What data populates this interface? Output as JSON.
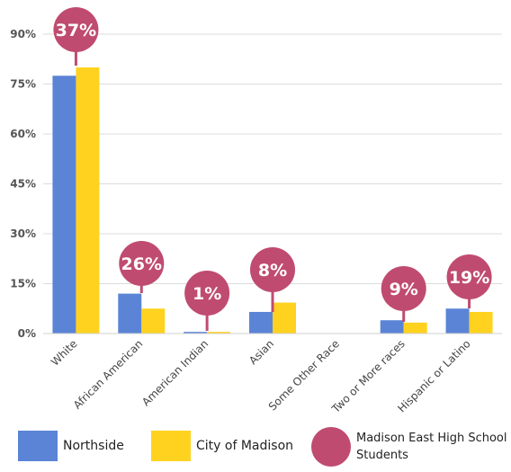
{
  "chart_data": {
    "type": "bar",
    "categories": [
      "White",
      "African American",
      "American Indian",
      "Asian",
      "Some Other Race",
      "Two or More races",
      "Hispanic or Latino"
    ],
    "series": [
      {
        "name": "Northside",
        "color": "#5B84D6",
        "values": [
          77.5,
          12,
          0.5,
          6.5,
          0,
          4,
          7.5
        ]
      },
      {
        "name": "City of Madison",
        "color": "#FFD21F",
        "values": [
          80,
          7.5,
          0.5,
          9.3,
          0,
          3.3,
          6.5
        ]
      }
    ],
    "bubbles": {
      "series_name": "Madison East High School Students",
      "color": "#C04B70",
      "labels": [
        "37%",
        "26%",
        "1%",
        "8%",
        "",
        "9%",
        "19%"
      ]
    },
    "y_ticks": [
      "0%",
      "15%",
      "30%",
      "45%",
      "60%",
      "75%",
      "90%"
    ],
    "ylim": [
      0,
      90
    ],
    "grid": true,
    "legend": "bottom"
  }
}
